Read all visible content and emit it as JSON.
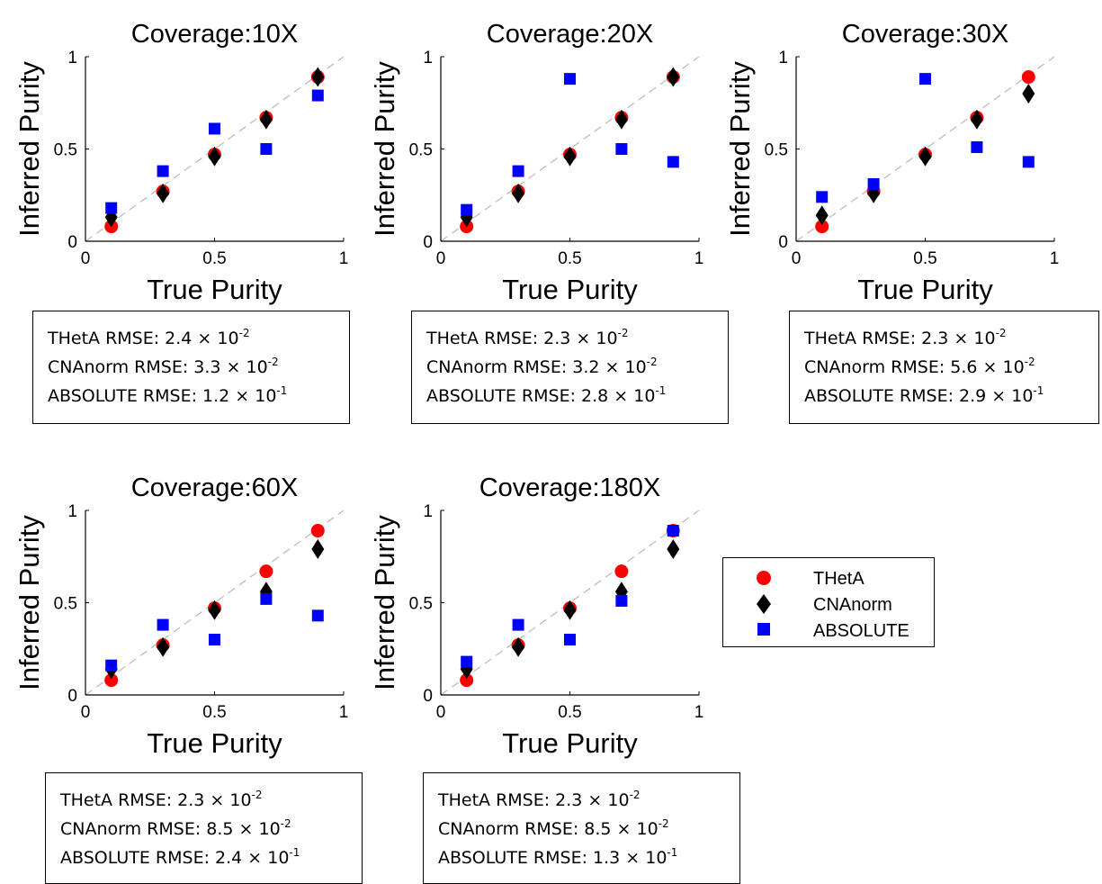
{
  "chart_data": [
    {
      "type": "scatter",
      "title": "Coverage:10X",
      "xlabel": "True Purity",
      "ylabel": "Inferred Purity",
      "xlim": [
        0,
        1
      ],
      "ylim": [
        0,
        1
      ],
      "xticks": [
        "0",
        "0.5",
        "1"
      ],
      "yticks": [
        "0",
        "0.5",
        "1"
      ],
      "x": [
        0.1,
        0.3,
        0.5,
        0.7,
        0.9
      ],
      "series": [
        {
          "name": "THetA",
          "values": [
            0.08,
            0.27,
            0.47,
            0.67,
            0.89
          ]
        },
        {
          "name": "CNAnorm",
          "values": [
            0.13,
            0.26,
            0.46,
            0.66,
            0.89
          ]
        },
        {
          "name": "ABSOLUTE",
          "values": [
            0.18,
            0.38,
            0.61,
            0.5,
            0.79
          ]
        }
      ],
      "rmse": [
        {
          "label": "THetA RMSE: 2.4 × 10",
          "exp": "-2"
        },
        {
          "label": "CNAnorm RMSE: 3.3 × 10",
          "exp": "-2"
        },
        {
          "label": "ABSOLUTE RMSE: 1.2 × 10",
          "exp": "-1"
        }
      ]
    },
    {
      "type": "scatter",
      "title": "Coverage:20X",
      "xlabel": "True Purity",
      "ylabel": "Inferred Purity",
      "xlim": [
        0,
        1
      ],
      "ylim": [
        0,
        1
      ],
      "xticks": [
        "0",
        "0.5",
        "1"
      ],
      "yticks": [
        "0",
        "0.5",
        "1"
      ],
      "x": [
        0.1,
        0.3,
        0.5,
        0.7,
        0.9
      ],
      "series": [
        {
          "name": "THetA",
          "values": [
            0.08,
            0.27,
            0.47,
            0.67,
            0.89
          ]
        },
        {
          "name": "CNAnorm",
          "values": [
            0.13,
            0.26,
            0.46,
            0.66,
            0.89
          ]
        },
        {
          "name": "ABSOLUTE",
          "values": [
            0.17,
            0.38,
            0.88,
            0.5,
            0.43
          ]
        }
      ],
      "rmse": [
        {
          "label": "THetA RMSE: 2.3 × 10",
          "exp": "-2"
        },
        {
          "label": "CNAnorm RMSE: 3.2 × 10",
          "exp": "-2"
        },
        {
          "label": "ABSOLUTE RMSE: 2.8 × 10",
          "exp": "-1"
        }
      ]
    },
    {
      "type": "scatter",
      "title": "Coverage:30X",
      "xlabel": "True Purity",
      "ylabel": "Inferred Purity",
      "xlim": [
        0,
        1
      ],
      "ylim": [
        0,
        1
      ],
      "xticks": [
        "0",
        "0.5",
        "1"
      ],
      "yticks": [
        "0",
        "0.5",
        "1"
      ],
      "x": [
        0.1,
        0.3,
        0.5,
        0.7,
        0.9
      ],
      "series": [
        {
          "name": "THetA",
          "values": [
            0.08,
            0.27,
            0.47,
            0.67,
            0.89
          ]
        },
        {
          "name": "CNAnorm",
          "values": [
            0.14,
            0.26,
            0.46,
            0.66,
            0.8
          ]
        },
        {
          "name": "ABSOLUTE",
          "values": [
            0.24,
            0.31,
            0.88,
            0.51,
            0.43
          ]
        }
      ],
      "rmse": [
        {
          "label": "THetA RMSE: 2.3 × 10",
          "exp": "-2"
        },
        {
          "label": "CNAnorm RMSE: 5.6 × 10",
          "exp": "-2"
        },
        {
          "label": "ABSOLUTE RMSE: 2.9 × 10",
          "exp": "-1"
        }
      ]
    },
    {
      "type": "scatter",
      "title": "Coverage:60X",
      "xlabel": "True Purity",
      "ylabel": "Inferred Purity",
      "xlim": [
        0,
        1
      ],
      "ylim": [
        0,
        1
      ],
      "xticks": [
        "0",
        "0.5",
        "1"
      ],
      "yticks": [
        "0",
        "0.5",
        "1"
      ],
      "x": [
        0.1,
        0.3,
        0.5,
        0.7,
        0.9
      ],
      "series": [
        {
          "name": "THetA",
          "values": [
            0.08,
            0.27,
            0.47,
            0.67,
            0.89
          ]
        },
        {
          "name": "CNAnorm",
          "values": [
            0.14,
            0.26,
            0.46,
            0.56,
            0.79
          ]
        },
        {
          "name": "ABSOLUTE",
          "values": [
            0.16,
            0.38,
            0.3,
            0.52,
            0.43
          ]
        }
      ],
      "rmse": [
        {
          "label": "THetA RMSE: 2.3 × 10",
          "exp": "-2"
        },
        {
          "label": "CNAnorm RMSE: 8.5 × 10",
          "exp": "-2"
        },
        {
          "label": "ABSOLUTE RMSE: 2.4 × 10",
          "exp": "-1"
        }
      ]
    },
    {
      "type": "scatter",
      "title": "Coverage:180X",
      "xlabel": "True Purity",
      "ylabel": "Inferred Purity",
      "xlim": [
        0,
        1
      ],
      "ylim": [
        0,
        1
      ],
      "xticks": [
        "0",
        "0.5",
        "1"
      ],
      "yticks": [
        "0",
        "0.5",
        "1"
      ],
      "x": [
        0.1,
        0.3,
        0.5,
        0.7,
        0.9
      ],
      "series": [
        {
          "name": "THetA",
          "values": [
            0.08,
            0.27,
            0.47,
            0.67,
            0.89
          ]
        },
        {
          "name": "CNAnorm",
          "values": [
            0.14,
            0.26,
            0.46,
            0.56,
            0.79
          ]
        },
        {
          "name": "ABSOLUTE",
          "values": [
            0.18,
            0.38,
            0.3,
            0.51,
            0.89
          ]
        }
      ],
      "rmse": [
        {
          "label": "THetA RMSE: 2.3 × 10",
          "exp": "-2"
        },
        {
          "label": "CNAnorm RMSE: 8.5 × 10",
          "exp": "-2"
        },
        {
          "label": "ABSOLUTE RMSE: 1.3 × 10",
          "exp": "-1"
        }
      ]
    }
  ],
  "legend": {
    "placement": "right",
    "items": [
      {
        "label": "THetA",
        "marker": "circle",
        "color": "#ff0000"
      },
      {
        "label": "CNAnorm",
        "marker": "diamond",
        "color": "#000000"
      },
      {
        "label": "ABSOLUTE",
        "marker": "square",
        "color": "#0000ff"
      }
    ]
  },
  "colors": {
    "THetA": "#ff0000",
    "CNAnorm": "#000000",
    "ABSOLUTE": "#0000ff",
    "diagonal": "#bdbdbd"
  }
}
